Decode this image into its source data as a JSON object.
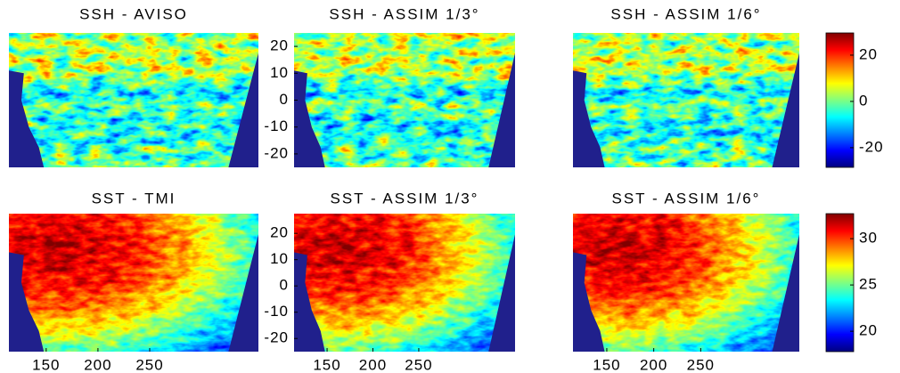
{
  "chart_data": [
    {
      "type": "heatmap",
      "title": "SSH - AVISO",
      "colormap": "jet"
    },
    {
      "type": "heatmap",
      "title": "SSH - ASSIM 1/3°",
      "colormap": "jet",
      "ylim": [
        -25,
        25
      ],
      "yticks": [
        -20,
        -10,
        0,
        10,
        20
      ]
    },
    {
      "type": "heatmap",
      "title": "SSH - ASSIM 1/6°",
      "colormap": "jet",
      "colorbar": {
        "lim": [
          -28.5,
          29.6
        ],
        "ticks": [
          -20,
          0,
          20
        ]
      }
    },
    {
      "type": "heatmap",
      "title": "SST - TMI",
      "colormap": "jet",
      "xlim": [
        114,
        355
      ],
      "xticks": [
        150,
        200,
        250
      ]
    },
    {
      "type": "heatmap",
      "title": "SST - ASSIM 1/3°",
      "colormap": "jet",
      "xlim": [
        114,
        355
      ],
      "xticks": [
        150,
        200,
        250
      ],
      "ylim": [
        -25,
        27.5
      ],
      "yticks": [
        -20,
        -10,
        0,
        10,
        20
      ]
    },
    {
      "type": "heatmap",
      "title": "SST - ASSIM 1/6°",
      "colormap": "jet",
      "xlim": [
        114,
        355
      ],
      "xticks": [
        150,
        200,
        250
      ],
      "colorbar": {
        "lim": [
          17.8,
          32.7
        ],
        "ticks": [
          20,
          25,
          30
        ]
      }
    }
  ]
}
